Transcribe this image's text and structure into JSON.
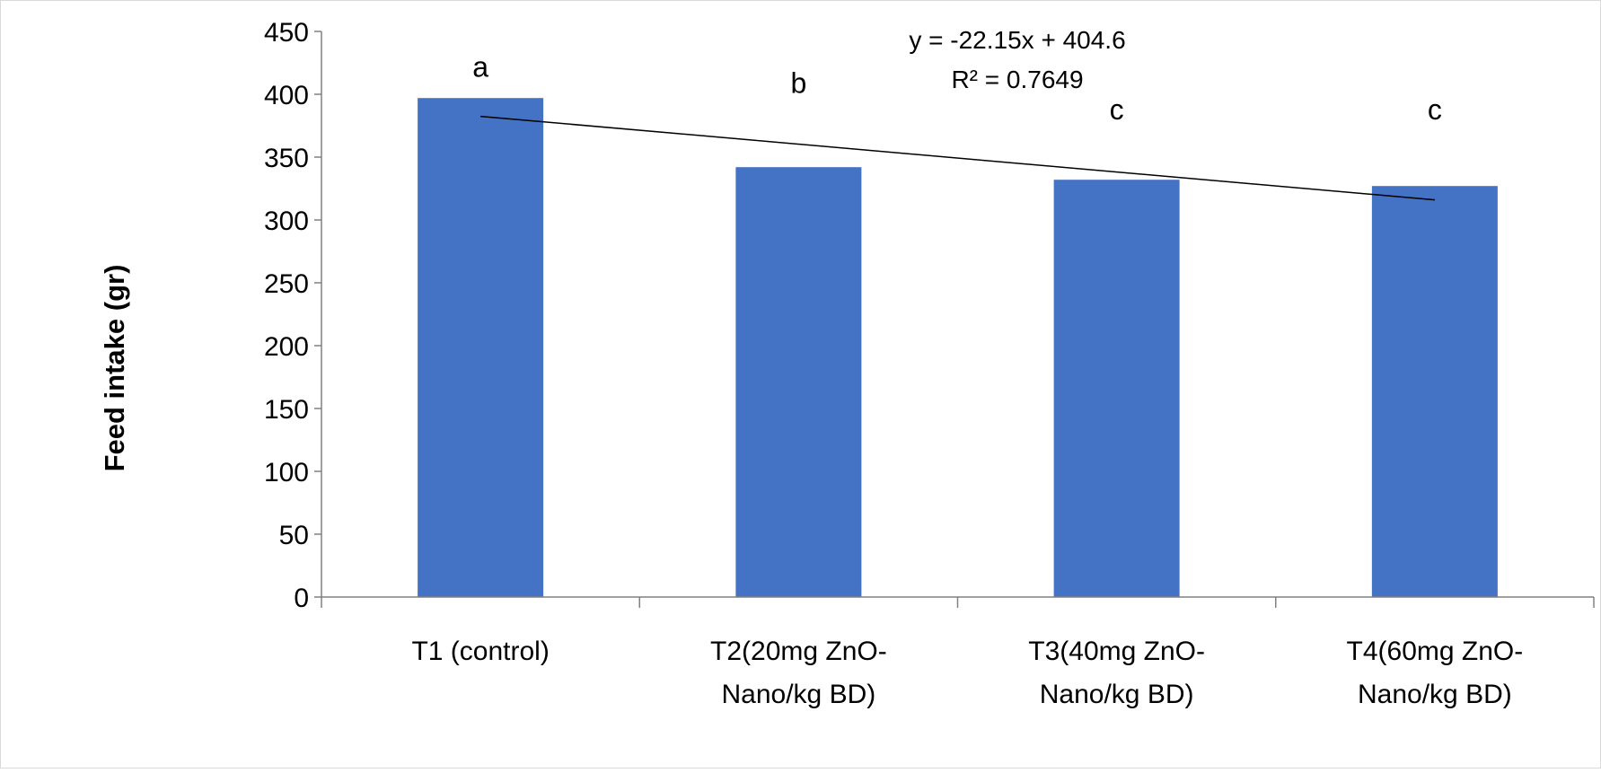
{
  "chart_data": {
    "type": "bar",
    "title": "",
    "xlabel": "",
    "ylabel": "Feed intake (gr)",
    "ylim": [
      0,
      450
    ],
    "ytick_step": 50,
    "yticks": [
      "0",
      "50",
      "100",
      "150",
      "200",
      "250",
      "300",
      "350",
      "400",
      "450"
    ],
    "grid": false,
    "legend": "none",
    "bar_color": "#4472C4",
    "categories": [
      {
        "line1": "T1 (control)",
        "line2": ""
      },
      {
        "line1": "T2(20mg  ZnO-",
        "line2": "Nano/kg BD)"
      },
      {
        "line1": "T3(40mg  ZnO-",
        "line2": "Nano/kg BD)"
      },
      {
        "line1": "T4(60mg  ZnO-",
        "line2": "Nano/kg BD)"
      }
    ],
    "values": [
      397,
      342,
      332,
      327
    ],
    "significance_letters": [
      "a",
      "b",
      "c",
      "c"
    ],
    "significance_letter_y": [
      414,
      401,
      380,
      380
    ],
    "trendline": {
      "type": "linear",
      "slope": -22.15,
      "intercept": 404.6,
      "color": "#000000",
      "equation_label": "y = -22.15x + 404.6",
      "r2_label": "R² = 0.7649"
    }
  }
}
